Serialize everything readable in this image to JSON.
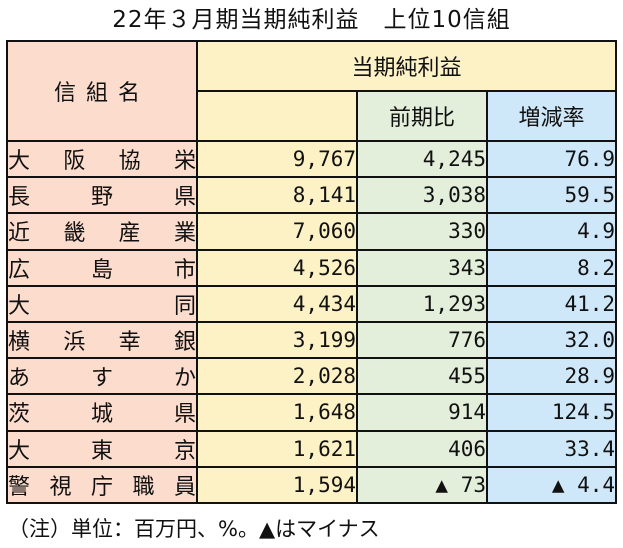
{
  "title": "22年３月期当期純利益　上位10信組",
  "headers": {
    "name": "信組名",
    "profit": "当期純利益",
    "prev": "前期比",
    "rate": "増減率"
  },
  "rows": [
    {
      "name": "大阪協栄",
      "profit": "9,767",
      "prev": "4,245",
      "rate": "76.9"
    },
    {
      "name": "長野県",
      "profit": "8,141",
      "prev": "3,038",
      "rate": "59.5"
    },
    {
      "name": "近畿産業",
      "profit": "7,060",
      "prev": "330",
      "rate": "4.9"
    },
    {
      "name": "広島市",
      "profit": "4,526",
      "prev": "343",
      "rate": "8.2"
    },
    {
      "name": "大同",
      "profit": "4,434",
      "prev": "1,293",
      "rate": "41.2"
    },
    {
      "name": "横浜幸銀",
      "profit": "3,199",
      "prev": "776",
      "rate": "32.0"
    },
    {
      "name": "あすか",
      "profit": "2,028",
      "prev": "455",
      "rate": "28.9"
    },
    {
      "name": "茨城県",
      "profit": "1,648",
      "prev": "914",
      "rate": "124.5"
    },
    {
      "name": "大東京",
      "profit": "1,621",
      "prev": "406",
      "rate": "33.4"
    },
    {
      "name": "警視庁職員",
      "profit": "1,594",
      "prev": "▲ 73",
      "rate": "▲ 4.4"
    }
  ],
  "note": "（注）単位：百万円、%。▲はマイナス"
}
